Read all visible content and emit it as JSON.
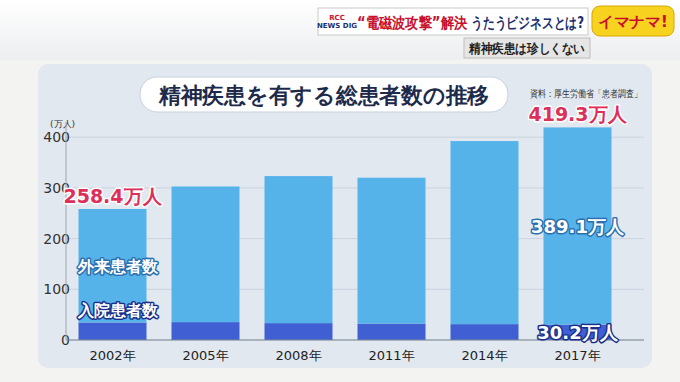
{
  "header": {
    "logo": "RCC NEWS DIG",
    "headline_parts": [
      "“電磁波攻撃”解決",
      "うたうビジネスとは?"
    ],
    "program": "イマナマ!",
    "subheadline": "精神疾患は珍しくない"
  },
  "chart_data": {
    "type": "bar",
    "stacked": true,
    "title": "精神疾患を有する総患者数の推移",
    "source": "資料：厚生労働省「患者調査」",
    "y_unit": "(万人)",
    "categories": [
      "2002年",
      "2005年",
      "2008年",
      "2011年",
      "2014年",
      "2017年"
    ],
    "series": [
      {
        "name": "入院患者数",
        "color": "#3f5fd3",
        "values": [
          34.5,
          35.3,
          33.3,
          32.3,
          31.3,
          30.2
        ],
        "value_labels": [
          null,
          null,
          null,
          null,
          null,
          "30.2万人"
        ]
      },
      {
        "name": "外来患者数",
        "color": "#55b3ea",
        "values": [
          223.9,
          267.5,
          290.0,
          287.8,
          361.1,
          389.1
        ],
        "value_labels": [
          null,
          null,
          null,
          null,
          null,
          "389.1万人"
        ]
      }
    ],
    "annotations": [
      {
        "text": "258.4万人",
        "x": "2002年",
        "y": 258.4,
        "color": "#dc2f5a"
      },
      {
        "text": "419.3万人",
        "x": "2017年",
        "y": 419.3,
        "color": "#dc2f5a"
      }
    ],
    "data_labels": true,
    "ylim": [
      0,
      430
    ],
    "yticks": [
      0,
      100,
      200,
      300,
      400
    ],
    "grid": true
  }
}
